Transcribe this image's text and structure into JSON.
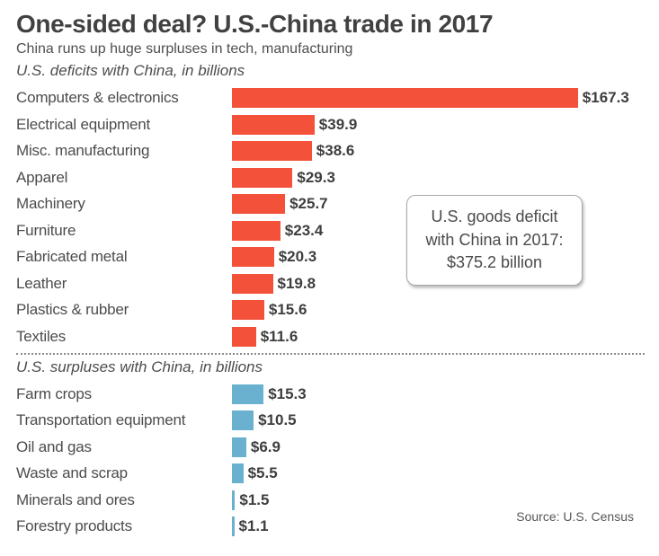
{
  "chart_data": {
    "type": "bar",
    "orientation": "horizontal",
    "title": "One-sided deal? U.S.-China trade in 2017",
    "subtitle": "China runs up huge surpluses in tech, manufacturing",
    "xlim": [
      0,
      175
    ],
    "grid": false,
    "legend": false,
    "sections": [
      {
        "label": "U.S. deficits with China, in billions",
        "bar_color": "#f4513a",
        "categories": [
          "Computers & electronics",
          "Electrical equipment",
          "Misc. manufacturing",
          "Apparel",
          "Machinery",
          "Furniture",
          "Fabricated metal",
          "Leather",
          "Plastics & rubber",
          "Textiles"
        ],
        "values": [
          167.3,
          39.9,
          38.6,
          29.3,
          25.7,
          23.4,
          20.3,
          19.8,
          15.6,
          11.6
        ],
        "value_labels": [
          "$167.3",
          "$39.9",
          "$38.6",
          "$29.3",
          "$25.7",
          "$23.4",
          "$20.3",
          "$19.8",
          "$15.6",
          "$11.6"
        ]
      },
      {
        "label": "U.S. surpluses with China, in billions",
        "bar_color": "#69b1ce",
        "categories": [
          "Farm crops",
          "Transportation equipment",
          "Oil and gas",
          "Waste and scrap",
          "Minerals and ores",
          "Forestry products"
        ],
        "values": [
          15.3,
          10.5,
          6.9,
          5.5,
          1.5,
          1.1
        ],
        "value_labels": [
          "$15.3",
          "$10.5",
          "$6.9",
          "$5.5",
          "$1.5",
          "$1.1"
        ]
      }
    ],
    "annotation": {
      "line1": "U.S. goods deficit",
      "line2": "with China in 2017:",
      "line3": "$375.2 billion"
    }
  },
  "source": "Source: U.S. Census",
  "colors": {
    "deficit_bar": "#f4513a",
    "surplus_bar": "#69b1ce",
    "title_text": "#414141",
    "body_text": "#4c4c4c"
  }
}
